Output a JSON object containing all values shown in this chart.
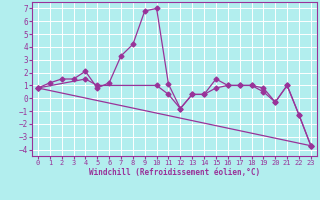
{
  "xlabel": "Windchill (Refroidissement éolien,°C)",
  "background_color": "#b2eeee",
  "grid_color": "#ffffff",
  "line_color": "#993399",
  "xlim": [
    -0.5,
    23.5
  ],
  "ylim": [
    -4.5,
    7.5
  ],
  "xticks": [
    0,
    1,
    2,
    3,
    4,
    5,
    6,
    7,
    8,
    9,
    10,
    11,
    12,
    13,
    14,
    15,
    16,
    17,
    18,
    19,
    20,
    21,
    22,
    23
  ],
  "yticks": [
    -4,
    -3,
    -2,
    -1,
    0,
    1,
    2,
    3,
    4,
    5,
    6,
    7
  ],
  "line1_x": [
    0,
    1,
    2,
    3,
    4,
    5,
    6,
    7,
    8,
    9,
    10,
    11,
    12,
    13,
    14,
    15,
    16,
    17,
    18,
    19,
    20,
    21,
    22,
    23
  ],
  "line1_y": [
    0.8,
    1.2,
    1.5,
    1.5,
    2.1,
    0.8,
    1.2,
    3.3,
    4.2,
    6.8,
    7.0,
    1.1,
    -0.8,
    0.3,
    0.3,
    1.5,
    1.0,
    1.0,
    1.0,
    0.8,
    -0.3,
    1.0,
    -1.3,
    -3.7
  ],
  "line2_x": [
    0,
    4,
    5,
    10,
    11,
    12,
    13,
    14,
    15,
    16,
    17,
    18,
    19,
    20,
    21,
    22,
    23
  ],
  "line2_y": [
    0.8,
    1.5,
    1.0,
    1.0,
    0.3,
    -0.8,
    0.3,
    0.3,
    0.8,
    1.0,
    1.0,
    1.0,
    0.5,
    -0.3,
    1.0,
    -1.3,
    -3.7
  ],
  "line3_x": [
    0,
    23
  ],
  "line3_y": [
    0.8,
    -3.7
  ],
  "marker": "D",
  "markersize": 2.5,
  "linewidth": 0.9
}
